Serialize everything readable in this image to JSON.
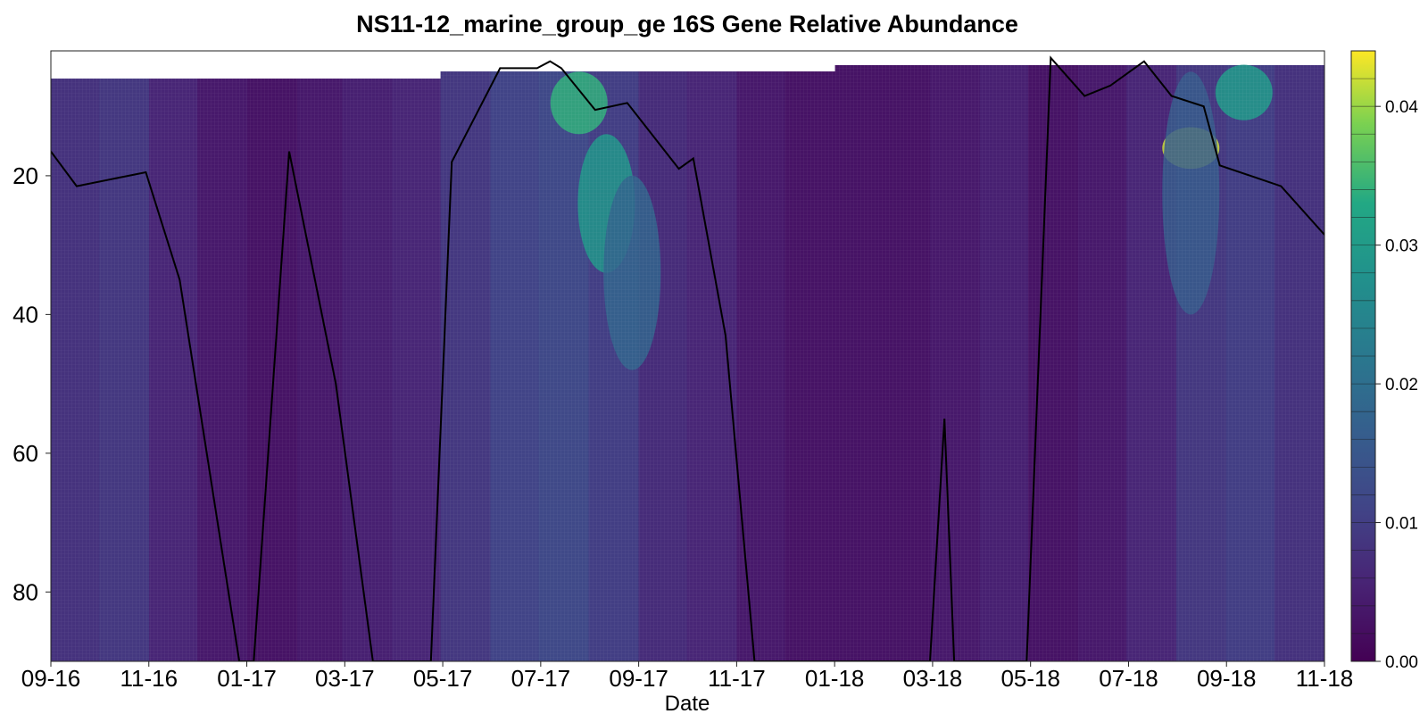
{
  "chart_data": {
    "type": "heatmap",
    "title": "NS11-12_marine_group_ge 16S Gene Relative Abundance",
    "xlabel": "Date",
    "ylabel": "",
    "x_ticks": [
      "09-16",
      "11-16",
      "01-17",
      "03-17",
      "05-17",
      "07-17",
      "09-17",
      "11-17",
      "01-18",
      "03-18",
      "05-18",
      "07-18",
      "09-18",
      "11-18"
    ],
    "xlim": [
      "2016-09-01",
      "2018-11-01"
    ],
    "ylim": [
      90,
      2
    ],
    "y_inverted": true,
    "y_ticks": [
      20,
      40,
      60,
      80
    ],
    "colorbar": {
      "colormap": "viridis",
      "range": [
        0,
        0.044
      ],
      "ticks": [
        "0.00",
        "0.01",
        "0.02",
        "0.03",
        "0.04"
      ],
      "tick_values": [
        0,
        0.01,
        0.02,
        0.03,
        0.04
      ]
    },
    "grid": false,
    "line_series": {
      "color": "#000000",
      "points": [
        [
          "2016-09-01",
          16.5
        ],
        [
          "2016-09-17",
          21.5
        ],
        [
          "2016-10-30",
          19.5
        ],
        [
          "2016-11-20",
          35.0
        ],
        [
          "2016-12-27",
          90
        ],
        [
          "2017-01-05",
          90
        ],
        [
          "2017-01-27",
          16.5
        ],
        [
          "2017-02-25",
          50.0
        ],
        [
          "2017-03-20",
          90
        ],
        [
          "2017-04-25",
          90
        ],
        [
          "2017-05-08",
          18.0
        ],
        [
          "2017-06-07",
          4.5
        ],
        [
          "2017-06-30",
          4.5
        ],
        [
          "2017-07-08",
          3.5
        ],
        [
          "2017-07-15",
          4.5
        ],
        [
          "2017-08-05",
          10.5
        ],
        [
          "2017-08-25",
          9.5
        ],
        [
          "2017-09-26",
          19.0
        ],
        [
          "2017-10-05",
          17.5
        ],
        [
          "2017-10-25",
          43.0
        ],
        [
          "2017-11-12",
          90
        ],
        [
          "2018-03-01",
          90
        ],
        [
          "2018-03-10",
          55.0
        ],
        [
          "2018-03-16",
          90
        ],
        [
          "2018-04-30",
          90
        ],
        [
          "2018-05-15",
          3.0
        ],
        [
          "2018-06-05",
          8.5
        ],
        [
          "2018-06-21",
          7.0
        ],
        [
          "2018-07-12",
          3.5
        ],
        [
          "2018-07-29",
          8.5
        ],
        [
          "2018-08-18",
          10.0
        ],
        [
          "2018-08-28",
          18.5
        ],
        [
          "2018-10-05",
          21.5
        ],
        [
          "2018-11-01",
          28.5
        ]
      ]
    },
    "hotspots": [
      {
        "date": "2017-07-26",
        "depth_from": 5,
        "depth_to": 14,
        "value": 0.034
      },
      {
        "date": "2017-08-12",
        "depth_from": 14,
        "depth_to": 34,
        "value": 0.029
      },
      {
        "date": "2017-08-28",
        "depth_from": 20,
        "depth_to": 48,
        "value": 0.018
      },
      {
        "date": "2018-08-10",
        "depth_from": 13,
        "depth_to": 19,
        "value": 0.042
      },
      {
        "date": "2018-09-12",
        "depth_from": 4,
        "depth_to": 12,
        "value": 0.03
      },
      {
        "date": "2018-08-10",
        "depth_from": 5,
        "depth_to": 40,
        "value": 0.016
      }
    ]
  }
}
